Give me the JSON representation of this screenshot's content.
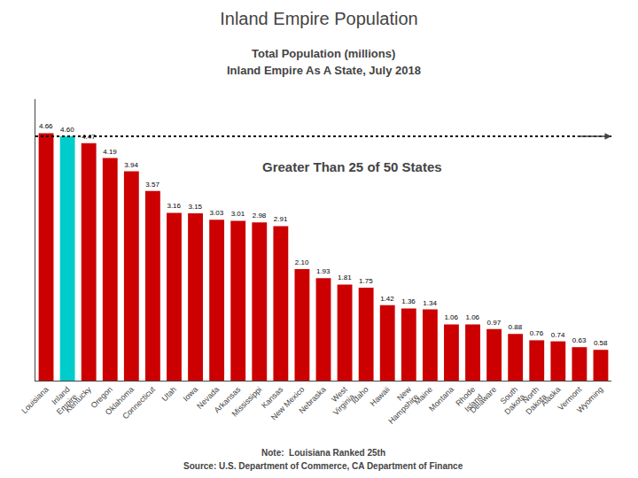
{
  "chart_data": {
    "type": "bar",
    "title": "Inland Empire Population",
    "subtitle": [
      "Total Population (millions)",
      "Inland Empire As A State, July 2018"
    ],
    "annotations": [
      "Greater Than 25 of 50 States"
    ],
    "notes": [
      "Note:  Louisiana Ranked 25th",
      "Source: U.S. Department of Commerce, CA Department of Finance"
    ],
    "categories": [
      "Louisiana",
      "Inland\nEmpire",
      "Kentucky",
      "Oregon",
      "Oklahoma",
      "Connecticut",
      "Utah",
      "Iowa",
      "Nevada",
      "Arkansas",
      "Mississippi",
      "Kansas",
      "New Mexico",
      "Nebraska",
      "West\nVirginia",
      "Idaho",
      "Hawaii",
      "New\nHampshire",
      "Maine",
      "Montana",
      "Rhode\nIsland",
      "Delaware",
      "South\nDakota",
      "North\nDakota",
      "Alaska",
      "Vermont",
      "Wyoming"
    ],
    "values": [
      4.66,
      4.6,
      4.47,
      4.19,
      3.94,
      3.57,
      3.16,
      3.15,
      3.03,
      3.01,
      2.98,
      2.91,
      2.1,
      1.93,
      1.81,
      1.75,
      1.42,
      1.36,
      1.34,
      1.06,
      1.06,
      0.97,
      0.88,
      0.76,
      0.74,
      0.63,
      0.58
    ],
    "value_labels": [
      "4.66",
      "4.60",
      "4.47",
      "4.19",
      "3.94",
      "3.57",
      "3.16",
      "3.15",
      "3.03",
      "3.01",
      "2.98",
      "2.91",
      "2.10",
      "1.93",
      "1.81",
      "1.75",
      "1.42",
      "1.36",
      "1.34",
      "1.06",
      "1.06",
      "0.97",
      "0.88",
      "0.76",
      "0.74",
      "0.63",
      "0.58"
    ],
    "colors": [
      "#cc0000",
      "#00cccc",
      "#cc0000",
      "#cc0000",
      "#cc0000",
      "#cc0000",
      "#cc0000",
      "#cc0000",
      "#cc0000",
      "#cc0000",
      "#cc0000",
      "#cc0000",
      "#cc0000",
      "#cc0000",
      "#cc0000",
      "#cc0000",
      "#cc0000",
      "#cc0000",
      "#cc0000",
      "#cc0000",
      "#cc0000",
      "#cc0000",
      "#cc0000",
      "#cc0000",
      "#cc0000",
      "#cc0000",
      "#cc0000"
    ],
    "reference_line": 4.6,
    "ylim": [
      0,
      5.3
    ],
    "data_labels": true,
    "tick_labels": "x",
    "grid": false
  }
}
